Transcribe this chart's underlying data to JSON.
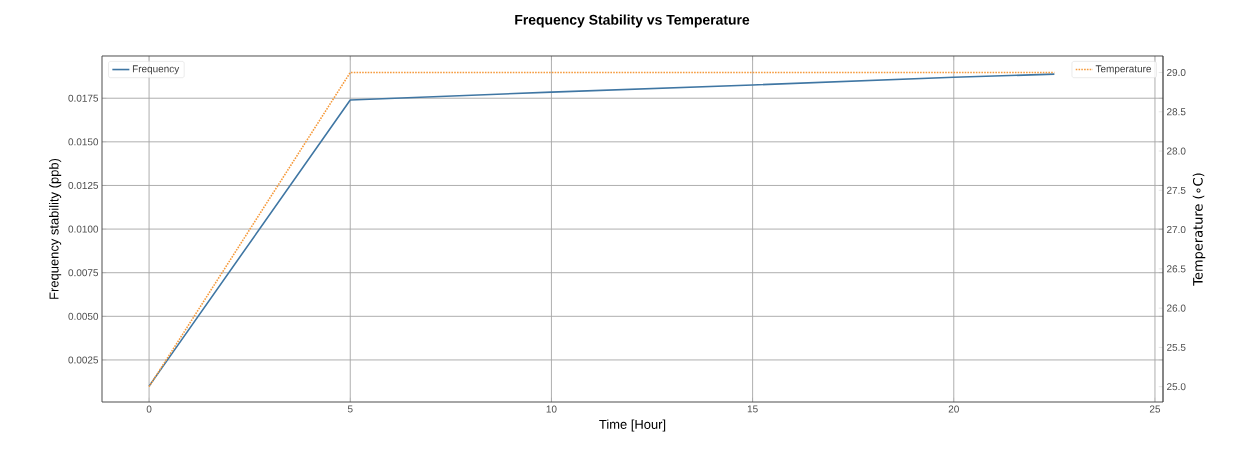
{
  "chart_data": {
    "type": "line",
    "title": "Frequency Stability vs Temperature",
    "xlabel": "Time [Hour]",
    "ylabel": "Frequency stability (ppb)",
    "y2label": "Temperature (∘C)",
    "x": [
      0,
      5,
      10,
      15,
      20,
      22.5
    ],
    "series": [
      {
        "name": "Frequency",
        "color": "#3f76a3",
        "values": [
          0.001,
          0.0174,
          0.01785,
          0.01826,
          0.0187,
          0.01888
        ],
        "line_style": "solid"
      },
      {
        "name": "Temperature",
        "color": "#f59a3c",
        "x": [
          0,
          5,
          22.5
        ],
        "values": [
          25,
          29,
          29
        ],
        "axis": "y2",
        "line_style": "dotted"
      }
    ],
    "xlim": [
      -1.17,
      25.2
    ],
    "xticks": [
      0,
      5,
      10,
      15,
      20,
      25
    ],
    "ylim": [
      9e-05,
      0.01992
    ],
    "yticks": [
      0.0025,
      {
        "value": 0.005,
        "label": "0.0050"
      },
      0.0075,
      {
        "value": 0.01,
        "label": "0.0100"
      },
      0.0125,
      {
        "value": 0.015,
        "label": "0.0150"
      },
      0.0175
    ],
    "y2lim": [
      24.805,
      29.21
    ],
    "y2ticks": [
      {
        "value": 25,
        "label": "25.0"
      },
      25.5,
      {
        "value": 26,
        "label": "26.0"
      },
      26.5,
      {
        "value": 27,
        "label": "27.0"
      },
      27.5,
      {
        "value": 28,
        "label": "28.0"
      },
      28.5,
      {
        "value": 29,
        "label": "29.0"
      }
    ],
    "grid": true,
    "legend": "top left",
    "marker": "none"
  }
}
